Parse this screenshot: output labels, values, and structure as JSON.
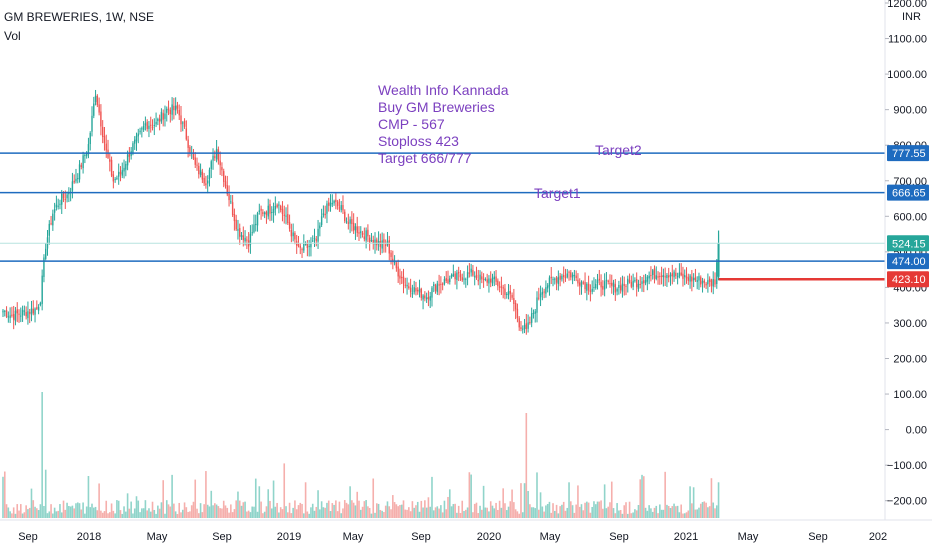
{
  "chart_data": {
    "type": "candlestick",
    "title": "GM BREWERIES, 1W, NSE",
    "volume_label": "Vol",
    "currency_label": "INR",
    "y_ticks": [
      "1200.00",
      "1100.00",
      "1000.00",
      "900.00",
      "800.00",
      "700.00",
      "600.00",
      "500.00",
      "400.00",
      "300.00",
      "200.00",
      "100.00",
      "0.00",
      "−100.00",
      "−200.00"
    ],
    "x_ticks": [
      "Sep",
      "2018",
      "May",
      "Sep",
      "2019",
      "May",
      "Sep",
      "2020",
      "May",
      "Sep",
      "2021",
      "May",
      "Sep",
      "202"
    ],
    "annotation_lines": [
      "Wealth Info Kannada",
      "Buy GM Breweries",
      "CMP - 567",
      "Stoploss 423",
      "Target 666/777"
    ],
    "target_labels": [
      "Target2",
      "Target1"
    ],
    "levels": [
      {
        "value": 777.55,
        "label": "777.55",
        "color": "#1e6bbf"
      },
      {
        "value": 666.65,
        "label": "666.65",
        "color": "#1e6bbf"
      },
      {
        "value": 524.15,
        "label": "524.15",
        "color": "#26a69a"
      },
      {
        "value": 474.0,
        "label": "474.00",
        "color": "#1e6bbf"
      },
      {
        "value": 423.1,
        "label": "423.10",
        "color": "#e53935"
      }
    ],
    "price_anchors": [
      [
        0,
        335
      ],
      [
        5,
        320
      ],
      [
        12,
        330
      ],
      [
        19,
        340
      ],
      [
        21,
        370
      ],
      [
        24,
        520
      ],
      [
        28,
        610
      ],
      [
        32,
        645
      ],
      [
        36,
        660
      ],
      [
        42,
        720
      ],
      [
        48,
        800
      ],
      [
        52,
        950
      ],
      [
        58,
        780
      ],
      [
        62,
        700
      ],
      [
        66,
        720
      ],
      [
        72,
        790
      ],
      [
        76,
        820
      ],
      [
        80,
        860
      ],
      [
        86,
        860
      ],
      [
        92,
        900
      ],
      [
        98,
        900
      ],
      [
        102,
        840
      ],
      [
        108,
        740
      ],
      [
        114,
        700
      ],
      [
        120,
        790
      ],
      [
        126,
        670
      ],
      [
        132,
        560
      ],
      [
        138,
        530
      ],
      [
        144,
        610
      ],
      [
        150,
        620
      ],
      [
        154,
        640
      ],
      [
        160,
        580
      ],
      [
        166,
        505
      ],
      [
        170,
        510
      ],
      [
        176,
        530
      ],
      [
        180,
        610
      ],
      [
        185,
        640
      ],
      [
        190,
        620
      ],
      [
        194,
        580
      ],
      [
        200,
        560
      ],
      [
        206,
        540
      ],
      [
        212,
        520
      ],
      [
        216,
        520
      ],
      [
        220,
        460
      ],
      [
        226,
        410
      ],
      [
        232,
        390
      ],
      [
        238,
        375
      ],
      [
        244,
        410
      ],
      [
        250,
        420
      ],
      [
        256,
        430
      ],
      [
        264,
        440
      ],
      [
        270,
        415
      ],
      [
        274,
        425
      ],
      [
        280,
        400
      ],
      [
        286,
        370
      ],
      [
        290,
        300
      ],
      [
        294,
        275
      ],
      [
        298,
        330
      ],
      [
        302,
        390
      ],
      [
        306,
        410
      ],
      [
        312,
        430
      ],
      [
        318,
        440
      ],
      [
        324,
        420
      ],
      [
        330,
        400
      ],
      [
        336,
        410
      ],
      [
        344,
        400
      ],
      [
        350,
        410
      ],
      [
        356,
        415
      ],
      [
        362,
        430
      ],
      [
        368,
        440
      ],
      [
        374,
        440
      ],
      [
        380,
        430
      ],
      [
        386,
        425
      ],
      [
        392,
        420
      ],
      [
        397,
        410
      ],
      [
        400,
        420
      ],
      [
        402,
        524
      ]
    ],
    "volume_spikes": [
      [
        22,
        300
      ],
      [
        24,
        115
      ],
      [
        16,
        70
      ],
      [
        48,
        100
      ],
      [
        90,
        90
      ],
      [
        158,
        130
      ],
      [
        294,
        250
      ],
      [
        338,
        80
      ],
      [
        402,
        85
      ]
    ],
    "x_range": [
      0,
      430
    ],
    "ylim": [
      -250,
      1200
    ]
  }
}
